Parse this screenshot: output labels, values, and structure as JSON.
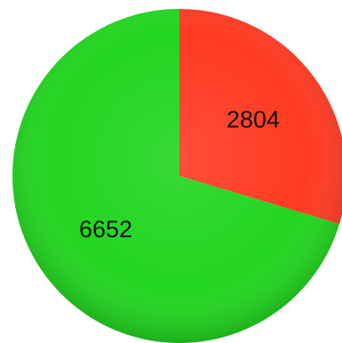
{
  "chart_data": {
    "type": "pie",
    "categories": [
      "",
      ""
    ],
    "values": [
      2804,
      6652
    ],
    "labels": [
      "2804",
      "6652"
    ],
    "colors": [
      "#ff3a22",
      "#22d61f"
    ],
    "title": "",
    "legend": "none",
    "start_angle": "12 o'clock",
    "direction": "clockwise"
  }
}
